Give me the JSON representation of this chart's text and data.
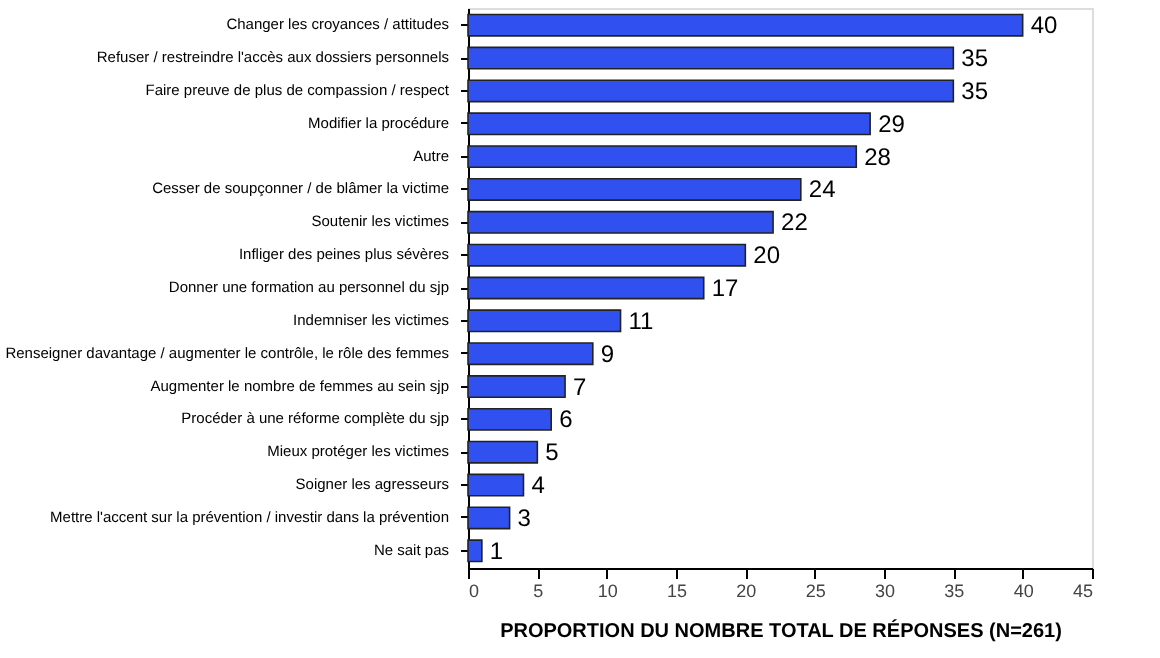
{
  "chart_data": {
    "type": "bar",
    "orientation": "horizontal",
    "xlabel": "PROPORTION DU NOMBRE TOTAL DE RÉPONSES (N=261)",
    "categories": [
      "Changer les croyances / attitudes",
      "Refuser / restreindre l'accès aux dossiers personnels",
      "Faire preuve de plus de compassion / respect",
      "Modifier la procédure",
      "Autre",
      "Cesser de soupçonner / de blâmer la victime",
      "Soutenir les victimes",
      "Infliger des peines plus sévères",
      "Donner une formation au personnel du sjp",
      "Indemniser les victimes",
      "Renseigner davantage / augmenter le contrôle, le rôle des femmes",
      "Augmenter le nombre de femmes au sein sjp",
      "Procéder à une réforme complète du sjp",
      "Mieux protéger les victimes",
      "Soigner les agresseurs",
      "Mettre l'accent sur la prévention / investir dans la prévention",
      "Ne sait pas"
    ],
    "values": [
      40,
      35,
      35,
      29,
      28,
      24,
      22,
      20,
      17,
      11,
      9,
      7,
      6,
      5,
      4,
      3,
      1
    ],
    "color": "#3050f0",
    "xlim": [
      0,
      45
    ],
    "xticks": [
      0,
      5,
      10,
      15,
      20,
      25,
      30,
      35,
      40,
      45
    ],
    "data_labels": true,
    "grid": false
  }
}
